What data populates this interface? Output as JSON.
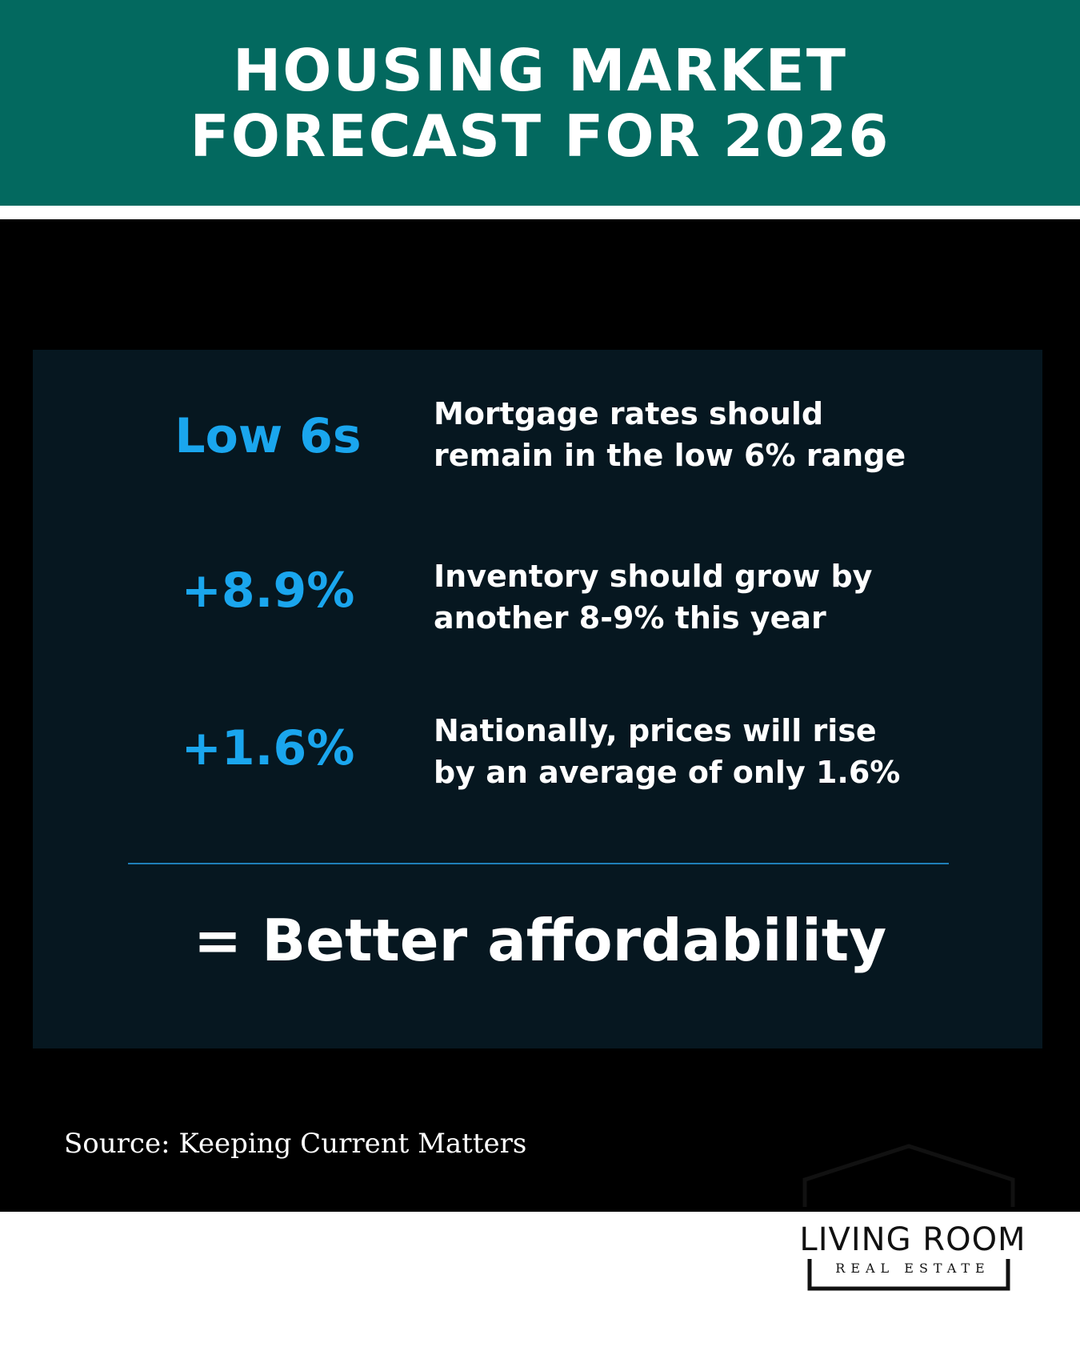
{
  "header": {
    "title_line1": "HOUSING MARKET",
    "title_line2": "FORECAST FOR 2026"
  },
  "stats": [
    {
      "value": "Low 6s",
      "description_line1": "Mortgage rates should",
      "description_line2": "remain in the low 6% range"
    },
    {
      "value": "+8.9%",
      "description_line1": "Inventory should grow by",
      "description_line2": "another 8-9% this year"
    },
    {
      "value": "+1.6%",
      "description_line1": "Nationally, prices will rise",
      "description_line2": "by an average of only 1.6%"
    }
  ],
  "conclusion": "= Better affordability",
  "source": "Source: Keeping Current Matters",
  "logo": {
    "name": "LIVING ROOM",
    "tagline": "REAL ESTATE"
  },
  "colors": {
    "header_bg": "#03695f",
    "panel_bg": "#061720",
    "stat_blue": "#1aa6ee",
    "background": "#000000"
  }
}
